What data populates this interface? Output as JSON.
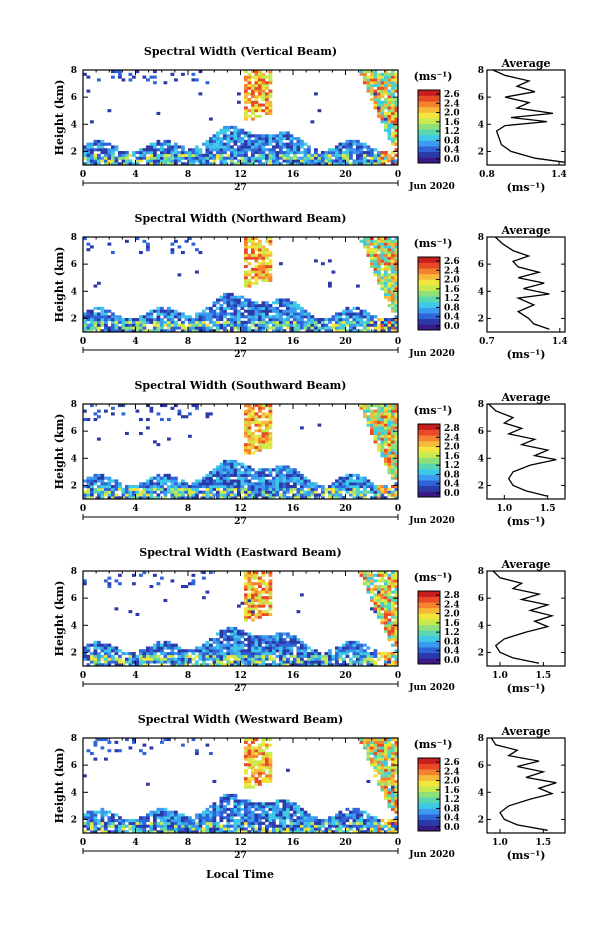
{
  "figure": {
    "xlabel": "Local Time",
    "date_label": "Jun 2020",
    "day_label": "27",
    "x_ticks": [
      "0",
      "4",
      "8",
      "12",
      "16",
      "20",
      "0"
    ],
    "y_ticks": [
      "2",
      "4",
      "6",
      "8"
    ],
    "ylabel": "Height (km)",
    "colorbar_unit": "(ms⁻¹)",
    "avg_title": "Average",
    "avg_unit": "(ms⁻¹)",
    "colorscale": [
      "#3a1a86",
      "#2b3aa8",
      "#2f63d8",
      "#3a9bef",
      "#3fc9e8",
      "#5ad6b0",
      "#8fe07a",
      "#c7ea4f",
      "#f2e63c",
      "#f7b93a",
      "#f4822f",
      "#e84a27",
      "#c81e1e"
    ]
  },
  "chart_data": [
    {
      "type": "heatmap",
      "title": "Spectral Width (Vertical Beam)",
      "xlim": [
        0,
        24
      ],
      "ylim": [
        1,
        8
      ],
      "colorbar_ticks": [
        "2.6",
        "2.4",
        "2.0",
        "1.6",
        "1.2",
        "0.8",
        "0.4",
        "0.0"
      ],
      "average": {
        "title": "Average",
        "xticks": [
          "0.8",
          "1.4"
        ],
        "xlim": [
          0.8,
          1.45
        ],
        "profile": [
          [
            1.2,
            1.45
          ],
          [
            1.5,
            1.2
          ],
          [
            2.0,
            1.0
          ],
          [
            2.5,
            0.92
          ],
          [
            3.0,
            0.9
          ],
          [
            3.5,
            0.88
          ],
          [
            3.9,
            0.95
          ],
          [
            4.2,
            1.3
          ],
          [
            4.5,
            1.0
          ],
          [
            4.8,
            1.35
          ],
          [
            5.2,
            1.05
          ],
          [
            5.6,
            1.15
          ],
          [
            6.0,
            0.95
          ],
          [
            6.4,
            1.2
          ],
          [
            6.8,
            1.05
          ],
          [
            7.2,
            1.15
          ],
          [
            7.6,
            0.95
          ],
          [
            8.0,
            0.85
          ]
        ]
      }
    },
    {
      "type": "heatmap",
      "title": "Spectral Width (Northward Beam)",
      "xlim": [
        0,
        24
      ],
      "ylim": [
        1,
        8
      ],
      "colorbar_ticks": [
        "2.6",
        "2.4",
        "2.0",
        "1.6",
        "1.2",
        "0.8",
        "0.4",
        "0.0"
      ],
      "average": {
        "title": "Average",
        "xticks": [
          "0.7",
          "1.4"
        ],
        "xlim": [
          0.7,
          1.45
        ],
        "profile": [
          [
            1.2,
            1.3
          ],
          [
            1.6,
            1.15
          ],
          [
            2.0,
            1.1
          ],
          [
            2.5,
            1.0
          ],
          [
            3.0,
            1.15
          ],
          [
            3.5,
            1.0
          ],
          [
            3.8,
            1.3
          ],
          [
            4.2,
            1.05
          ],
          [
            4.6,
            1.25
          ],
          [
            5.0,
            1.0
          ],
          [
            5.4,
            1.2
          ],
          [
            5.8,
            1.0
          ],
          [
            6.2,
            0.95
          ],
          [
            6.6,
            1.1
          ],
          [
            7.0,
            0.95
          ],
          [
            7.5,
            0.85
          ],
          [
            8.0,
            0.78
          ]
        ]
      }
    },
    {
      "type": "heatmap",
      "title": "Spectral Width (Southward Beam)",
      "xlim": [
        0,
        24
      ],
      "ylim": [
        1,
        8
      ],
      "colorbar_ticks": [
        "2.8",
        "2.4",
        "2.0",
        "1.6",
        "1.2",
        "0.8",
        "0.4",
        "0.0"
      ],
      "average": {
        "title": "Average",
        "xticks": [
          "1.0",
          "1.5"
        ],
        "xlim": [
          0.8,
          1.7
        ],
        "profile": [
          [
            1.2,
            1.5
          ],
          [
            1.6,
            1.25
          ],
          [
            2.0,
            1.1
          ],
          [
            2.5,
            1.05
          ],
          [
            3.0,
            1.1
          ],
          [
            3.5,
            1.3
          ],
          [
            3.9,
            1.6
          ],
          [
            4.2,
            1.35
          ],
          [
            4.6,
            1.5
          ],
          [
            5.0,
            1.2
          ],
          [
            5.4,
            1.35
          ],
          [
            5.8,
            1.05
          ],
          [
            6.2,
            1.2
          ],
          [
            6.6,
            1.0
          ],
          [
            7.0,
            1.1
          ],
          [
            7.5,
            0.9
          ],
          [
            8.0,
            0.82
          ]
        ]
      }
    },
    {
      "type": "heatmap",
      "title": "Spectral Width (Eastward Beam)",
      "xlim": [
        0,
        24
      ],
      "ylim": [
        1,
        8
      ],
      "colorbar_ticks": [
        "2.8",
        "2.4",
        "2.0",
        "1.6",
        "1.2",
        "0.8",
        "0.4",
        "0.0"
      ],
      "average": {
        "title": "Average",
        "xticks": [
          "1.0",
          "1.5"
        ],
        "xlim": [
          0.85,
          1.75
        ],
        "profile": [
          [
            1.2,
            1.45
          ],
          [
            1.6,
            1.15
          ],
          [
            2.0,
            1.0
          ],
          [
            2.5,
            0.95
          ],
          [
            3.0,
            1.05
          ],
          [
            3.5,
            1.3
          ],
          [
            3.9,
            1.55
          ],
          [
            4.3,
            1.4
          ],
          [
            4.7,
            1.6
          ],
          [
            5.1,
            1.35
          ],
          [
            5.5,
            1.55
          ],
          [
            5.9,
            1.25
          ],
          [
            6.3,
            1.45
          ],
          [
            6.7,
            1.15
          ],
          [
            7.1,
            1.25
          ],
          [
            7.5,
            1.0
          ],
          [
            8.0,
            0.92
          ]
        ]
      }
    },
    {
      "type": "heatmap",
      "title": "Spectral Width (Westward Beam)",
      "xlim": [
        0,
        24
      ],
      "ylim": [
        1,
        8
      ],
      "colorbar_ticks": [
        "2.6",
        "2.4",
        "2.0",
        "1.6",
        "1.2",
        "0.8",
        "0.4",
        "0.0"
      ],
      "average": {
        "title": "Average",
        "xticks": [
          "1.0",
          "1.5"
        ],
        "xlim": [
          0.85,
          1.75
        ],
        "profile": [
          [
            1.2,
            1.55
          ],
          [
            1.6,
            1.2
          ],
          [
            2.0,
            1.05
          ],
          [
            2.5,
            1.0
          ],
          [
            3.0,
            1.1
          ],
          [
            3.5,
            1.35
          ],
          [
            3.9,
            1.6
          ],
          [
            4.3,
            1.45
          ],
          [
            4.7,
            1.65
          ],
          [
            5.1,
            1.3
          ],
          [
            5.5,
            1.5
          ],
          [
            5.9,
            1.2
          ],
          [
            6.3,
            1.45
          ],
          [
            6.7,
            1.1
          ],
          [
            7.1,
            1.2
          ],
          [
            7.5,
            0.95
          ],
          [
            8.0,
            0.9
          ]
        ]
      }
    }
  ]
}
